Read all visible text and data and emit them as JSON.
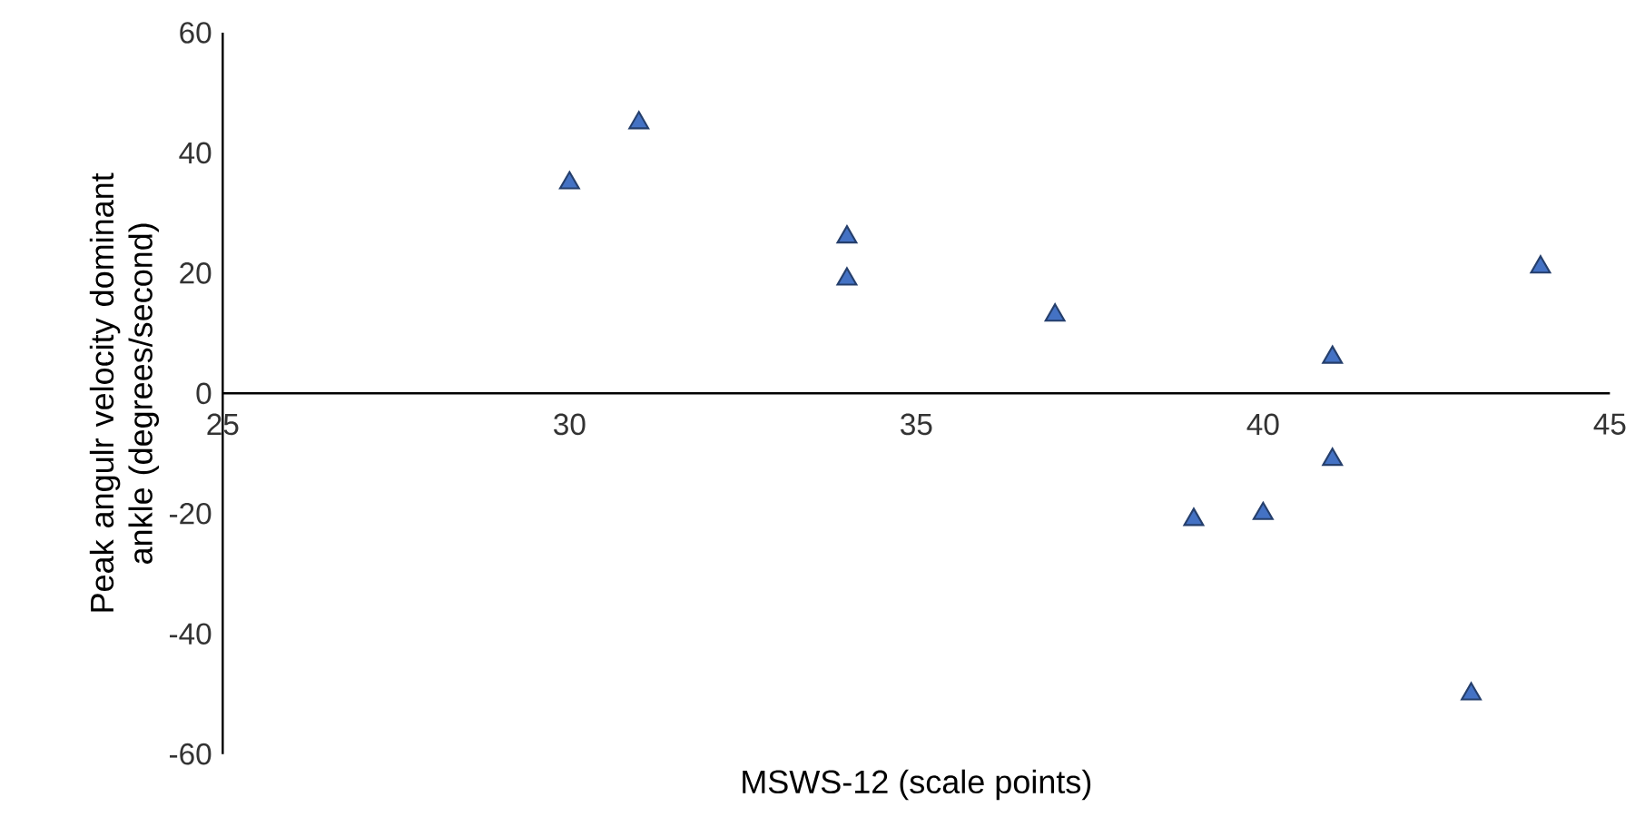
{
  "chart_data": {
    "type": "scatter",
    "xlabel": "MSWS-12 (scale points)",
    "ylabel": "Peak angulr velocity dominant ankle (degrees/second)",
    "x": [
      30,
      31,
      34,
      34,
      37,
      39,
      40,
      41,
      41,
      43,
      44
    ],
    "values": [
      35,
      45,
      26,
      19,
      13,
      -21,
      -20,
      6,
      -11,
      -50,
      21
    ],
    "color": "#4472c4",
    "marker": "triangle",
    "xlim": [
      25,
      45
    ],
    "ylim": [
      -60,
      60
    ],
    "xticks": [
      25,
      30,
      35,
      40,
      45
    ],
    "yticks": [
      -60,
      -40,
      -20,
      0,
      20,
      40,
      60
    ]
  }
}
